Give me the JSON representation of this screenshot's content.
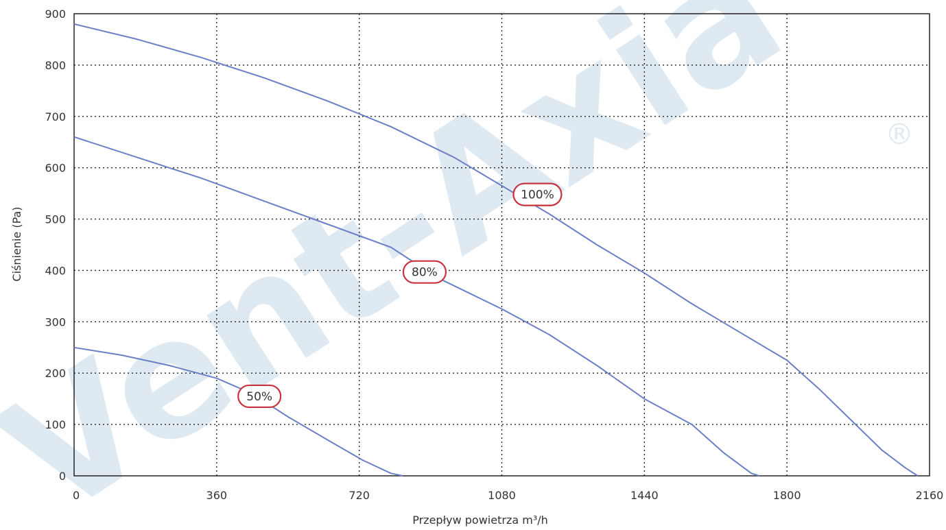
{
  "watermark": {
    "text": "Vent-Axia",
    "registered_mark": "®"
  },
  "chart_data": {
    "type": "line",
    "xlabel": "Przepływ powietrza m³/h",
    "ylabel": "Ciśnienie (Pa)",
    "xlim": [
      0,
      2160
    ],
    "ylim": [
      0,
      900
    ],
    "xticks": [
      "0",
      "360",
      "720",
      "1080",
      "1440",
      "1800",
      "2160"
    ],
    "yticks": [
      "0",
      "100",
      "200",
      "300",
      "400",
      "500",
      "600",
      "700",
      "800",
      "900"
    ],
    "grid": "dotted",
    "line_color": "#6b7fc7",
    "badge_color": "#c8323c",
    "series": [
      {
        "name": "100%",
        "points": [
          [
            0,
            880
          ],
          [
            160,
            850
          ],
          [
            320,
            815
          ],
          [
            480,
            775
          ],
          [
            640,
            730
          ],
          [
            800,
            680
          ],
          [
            960,
            620
          ],
          [
            1080,
            565
          ],
          [
            1200,
            510
          ],
          [
            1320,
            450
          ],
          [
            1440,
            395
          ],
          [
            1560,
            335
          ],
          [
            1680,
            280
          ],
          [
            1800,
            225
          ],
          [
            1880,
            170
          ],
          [
            1960,
            110
          ],
          [
            2040,
            50
          ],
          [
            2100,
            15
          ],
          [
            2130,
            0
          ]
        ]
      },
      {
        "name": "80%",
        "points": [
          [
            0,
            660
          ],
          [
            160,
            620
          ],
          [
            320,
            580
          ],
          [
            480,
            535
          ],
          [
            640,
            490
          ],
          [
            800,
            445
          ],
          [
            920,
            385
          ],
          [
            1080,
            325
          ],
          [
            1200,
            275
          ],
          [
            1320,
            215
          ],
          [
            1440,
            150
          ],
          [
            1560,
            100
          ],
          [
            1640,
            45
          ],
          [
            1710,
            5
          ],
          [
            1730,
            0
          ]
        ]
      },
      {
        "name": "50%",
        "points": [
          [
            0,
            250
          ],
          [
            120,
            235
          ],
          [
            240,
            215
          ],
          [
            360,
            190
          ],
          [
            450,
            160
          ],
          [
            540,
            115
          ],
          [
            640,
            70
          ],
          [
            730,
            30
          ],
          [
            800,
            5
          ],
          [
            830,
            0
          ]
        ]
      }
    ]
  }
}
